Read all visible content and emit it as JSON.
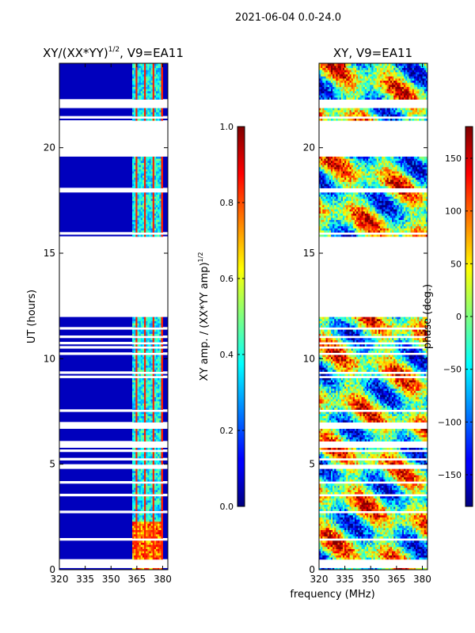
{
  "figure": {
    "suptitle": "2021-06-04 0.0-24.0",
    "shared_xlabel": "frequency (MHz)"
  },
  "chart_data": [
    {
      "type": "heatmap",
      "title": "XY/(XX*YY)",
      "title_exponent": "1/2",
      "title_suffix": ", V9=EA11",
      "ylabel": "UT (hours)",
      "xlim": [
        320,
        383
      ],
      "ylim": [
        0,
        24
      ],
      "xticks": [
        "320",
        "335",
        "350",
        "365",
        "380"
      ],
      "xtick_values": [
        320,
        335,
        350,
        365,
        380
      ],
      "yticks": [
        "0",
        "5",
        "10",
        "15",
        "20"
      ],
      "ytick_values": [
        0,
        5,
        10,
        15,
        20
      ],
      "colorbar": {
        "label": "XY amp. / (XX*YY amp)",
        "label_exponent": "1/2",
        "range": [
          0.0,
          1.0
        ],
        "ticks": [
          "0.0",
          "0.2",
          "0.4",
          "0.6",
          "0.8",
          "1.0"
        ],
        "tick_values": [
          0.0,
          0.2,
          0.4,
          0.6,
          0.8,
          1.0
        ],
        "colormap": "jet"
      }
    },
    {
      "type": "heatmap",
      "title": "XY, V9=EA11",
      "xlim": [
        320,
        383
      ],
      "ylim": [
        0,
        24
      ],
      "xticks": [
        "320",
        "335",
        "350",
        "365",
        "380"
      ],
      "xtick_values": [
        320,
        335,
        350,
        365,
        380
      ],
      "yticks": [
        "0",
        "5",
        "10",
        "15",
        "20"
      ],
      "ytick_values": [
        0,
        5,
        10,
        15,
        20
      ],
      "colorbar": {
        "label": "phase (deg.)",
        "range": [
          -180,
          180
        ],
        "ticks": [
          "−150",
          "−100",
          "−50",
          "0",
          "50",
          "100",
          "150"
        ],
        "tick_values": [
          -150,
          -100,
          -50,
          0,
          50,
          100,
          150
        ],
        "colormap": "jet"
      }
    }
  ],
  "observation": {
    "gap_bands_hours": [
      [
        21.35,
        21.5
      ],
      [
        21.95,
        22.25
      ],
      [
        19.6,
        21.3
      ],
      [
        12.05,
        15.8
      ],
      [
        0.15,
        0.35
      ]
    ],
    "bright_channel_range_mhz": [
      362,
      380
    ],
    "low_amplitude_hint": 0.06
  }
}
